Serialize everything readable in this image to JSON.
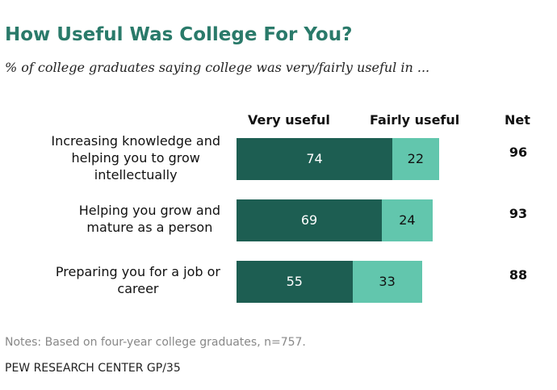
{
  "title": "How Useful Was College For You?",
  "subtitle": "% of college graduates saying college was very/fairly useful in ...",
  "headers": {
    "very": "Very useful",
    "fairly": "Fairly useful",
    "net": "Net"
  },
  "notes": "Notes: Based on four-year college graduates, n=757.",
  "source": "PEW RESEARCH CENTER GP/35",
  "colors": {
    "very": "#1d5e52",
    "fairly": "#62c6ad",
    "title": "#2a7a6a"
  },
  "chart_data": {
    "type": "bar",
    "orientation": "horizontal",
    "stacked": true,
    "categories": [
      "Increasing knowledge and helping you to grow intellectually",
      "Helping you grow and mature as a person",
      "Preparing you for a job or career"
    ],
    "series": [
      {
        "name": "Very useful",
        "values": [
          74,
          69,
          55
        ]
      },
      {
        "name": "Fairly useful",
        "values": [
          22,
          24,
          33
        ]
      }
    ],
    "net": [
      96,
      93,
      88
    ]
  }
}
